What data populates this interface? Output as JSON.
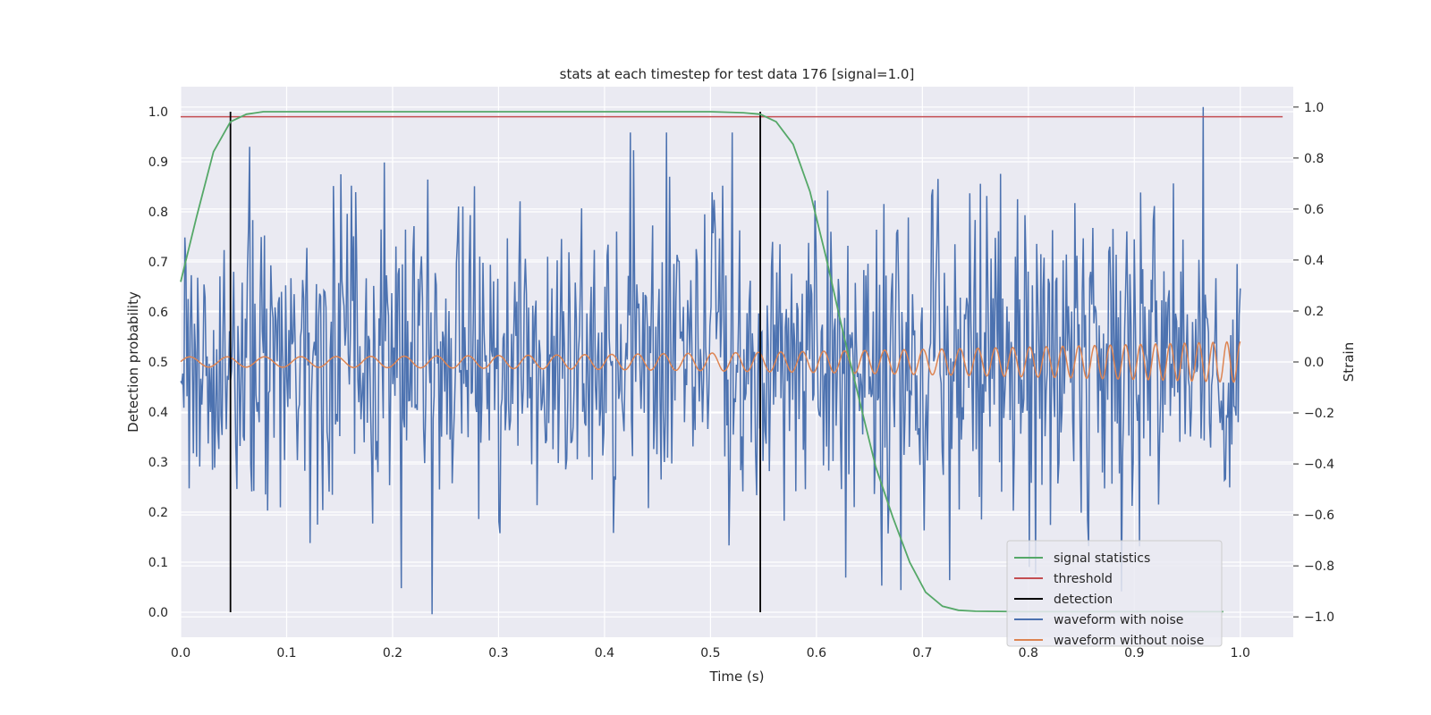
{
  "chart_data": {
    "type": "line",
    "title": "stats at each timestep for test data 176 [signal=1.0]",
    "xlabel": "Time (s)",
    "ylabel_left": "Detection probability",
    "ylabel_right": "Strain",
    "xlim": [
      0.0,
      1.05
    ],
    "ylim_left": [
      -0.05,
      1.05
    ],
    "ylim_right": [
      -1.08,
      1.08
    ],
    "x_ticks": [
      "0.0",
      "0.1",
      "0.2",
      "0.3",
      "0.4",
      "0.5",
      "0.6",
      "0.7",
      "0.8",
      "0.9",
      "1.0"
    ],
    "y_ticks_left": [
      "0.0",
      "0.1",
      "0.2",
      "0.3",
      "0.4",
      "0.5",
      "0.6",
      "0.7",
      "0.8",
      "0.9",
      "1.0"
    ],
    "y_ticks_right": [
      "−1.0",
      "−0.8",
      "−0.6",
      "−0.4",
      "−0.2",
      "0.0",
      "0.2",
      "0.4",
      "0.6",
      "0.8",
      "1.0"
    ],
    "grid": true,
    "legend_position": "lower-right",
    "series": [
      {
        "name": "signal statistics",
        "axis": "left",
        "color": "#55a868",
        "x": [
          0.0,
          0.015,
          0.031,
          0.047,
          0.062,
          0.078,
          0.1,
          0.2,
          0.3,
          0.4,
          0.5,
          0.531,
          0.547,
          0.562,
          0.578,
          0.594,
          0.609,
          0.625,
          0.641,
          0.656,
          0.672,
          0.688,
          0.703,
          0.719,
          0.734,
          0.75,
          0.8,
          0.9,
          0.984
        ],
        "y": [
          0.66,
          0.79,
          0.92,
          0.98,
          0.995,
          1.0,
          1.0,
          1.0,
          1.0,
          1.0,
          1.0,
          0.998,
          0.995,
          0.98,
          0.935,
          0.84,
          0.71,
          0.56,
          0.42,
          0.29,
          0.19,
          0.1,
          0.04,
          0.012,
          0.004,
          0.002,
          0.001,
          0.001,
          0.001
        ]
      },
      {
        "name": "threshold",
        "axis": "left",
        "color": "#c44e52",
        "x": [
          0.0,
          1.04
        ],
        "y": [
          0.99,
          0.99
        ]
      },
      {
        "name": "detection",
        "axis": "left",
        "color": "#000000",
        "x": [
          0.047,
          0.547
        ],
        "y_range": [
          0.0,
          1.0
        ]
      },
      {
        "name": "waveform with noise",
        "axis": "right",
        "color": "#4c72b0",
        "description_values": "noisy strain, amplitude roughly within -0.95 to 1.0, peak 1.0 near t=0.965",
        "x_range": [
          0.0,
          1.0
        ],
        "peak": {
          "x": 0.965,
          "y": 1.0
        },
        "min": {
          "x": 0.237,
          "y": -0.99
        }
      },
      {
        "name": "waveform without noise",
        "axis": "right",
        "color": "#dd8452",
        "x_range": [
          0.0,
          1.0
        ],
        "amplitude_start": 0.02,
        "amplitude_end": 0.08
      }
    ]
  }
}
